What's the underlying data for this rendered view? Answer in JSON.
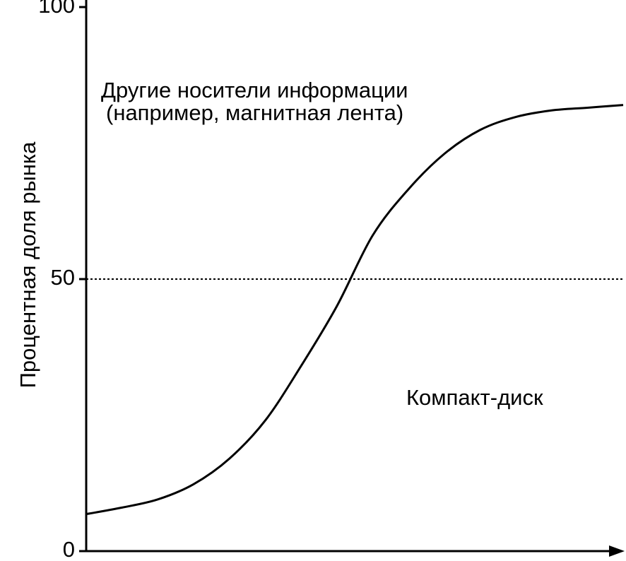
{
  "chart_data": {
    "type": "line",
    "y_label": "Процентная доля рынка",
    "annotations": [
      "Другие носители информации",
      "(например,  магнитная лента)",
      "Компакт-диск"
    ],
    "categories": [
      null,
      null,
      null,
      null,
      null,
      null,
      null,
      null,
      null,
      null,
      null,
      null,
      null,
      null,
      null,
      null
    ],
    "values": [
      6.8,
      8,
      9.5,
      12.3,
      17,
      24,
      34,
      45,
      58,
      66.5,
      73,
      77.4,
      79.8,
      81,
      81.5,
      82
    ],
    "color": "#000000",
    "ylim": [
      0,
      100
    ],
    "yticks": [
      0,
      50,
      100
    ],
    "hline": 50
  }
}
